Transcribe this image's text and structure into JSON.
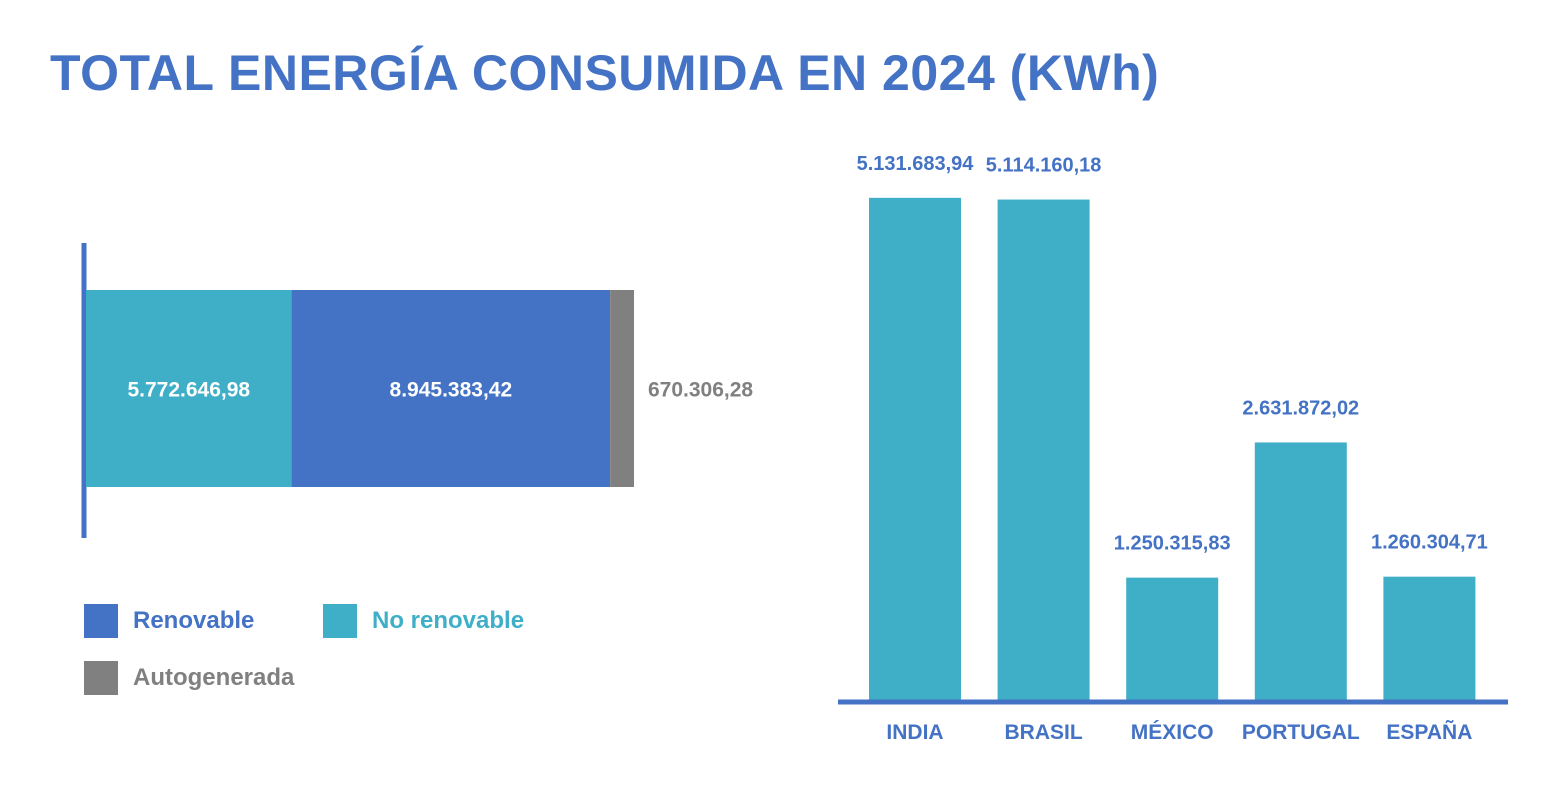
{
  "title": "TOTAL ENERGÍA CONSUMIDA EN 2024 (KWh)",
  "colors": {
    "renovable": "#4472c4",
    "no_renovable": "#3fafc8",
    "autogenerada": "#808080",
    "axis": "#4472c4",
    "label_blue": "#4472c4",
    "white": "#ffffff"
  },
  "legend": {
    "renovable": "Renovable",
    "no_renovable": "No renovable",
    "autogenerada": "Autogenerada"
  },
  "chart_data": [
    {
      "type": "bar",
      "orientation": "horizontal",
      "stacked": true,
      "series": [
        {
          "name": "No renovable",
          "label": "5.772.646,98",
          "values": [
            5772646.98
          ]
        },
        {
          "name": "Renovable",
          "label": "8.945.383,42",
          "values": [
            8945383.42
          ]
        },
        {
          "name": "Autogenerada",
          "label": "670.306,28",
          "values": [
            670306.28
          ]
        }
      ],
      "legend_position": "bottom-left",
      "grid": false
    },
    {
      "type": "bar",
      "orientation": "vertical",
      "categories": [
        "INDIA",
        "BRASIL",
        "MÉXICO",
        "PORTUGAL",
        "ESPAÑA"
      ],
      "values": [
        5131683.94,
        5114160.18,
        1250315.83,
        2631872.02,
        1260304.71
      ],
      "value_labels": [
        "5.131.683,94",
        "5.114.160,18",
        "1.250.315,83",
        "2.631.872,02",
        "1.260.304,71"
      ],
      "ylim": [
        0,
        5600000
      ],
      "grid": false
    }
  ]
}
